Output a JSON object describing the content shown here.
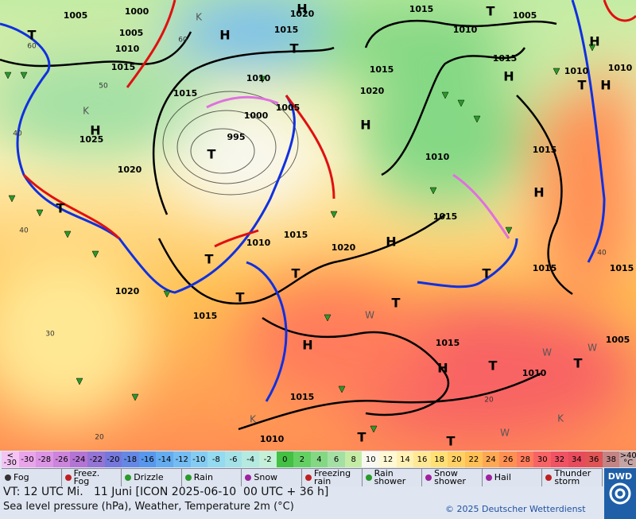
{
  "map": {
    "isobar_labels": [
      "1005",
      "1000",
      "1020",
      "1015",
      "1005",
      "1005",
      "1010",
      "1015",
      "1010",
      "1015",
      "1015",
      "1010",
      "1010",
      "1010",
      "1015",
      "1015",
      "1020",
      "1005",
      "1000",
      "995",
      "1025",
      "1020",
      "1015",
      "1010",
      "1015",
      "1015",
      "1010",
      "1020",
      "1015",
      "1015",
      "1020",
      "1015",
      "1015",
      "1005",
      "1010",
      "1015",
      "1010"
    ],
    "systems": [
      "H",
      "H",
      "H",
      "H",
      "H",
      "H",
      "H",
      "H",
      "H",
      "H",
      "H",
      "T",
      "T",
      "T",
      "T",
      "T",
      "T",
      "T",
      "T",
      "T",
      "T",
      "T",
      "T",
      "T",
      "T",
      "T"
    ],
    "temperature_labels": [
      "60",
      "60",
      "50",
      "40",
      "40",
      "30",
      "20",
      "20",
      "40"
    ],
    "air_mass_labels": [
      "K",
      "K",
      "K",
      "K",
      "W",
      "W",
      "W",
      "W"
    ]
  },
  "legend": {
    "scale": [
      {
        "top": "<",
        "label": "-30",
        "color": "#f4c4f4"
      },
      {
        "label": "-30",
        "color": "#eaa4ea"
      },
      {
        "label": "-28",
        "color": "#dc94e4"
      },
      {
        "label": "-26",
        "color": "#cc84dc"
      },
      {
        "label": "-24",
        "color": "#b474d4"
      },
      {
        "label": "-22",
        "color": "#9474d4"
      },
      {
        "label": "-20",
        "color": "#7478dc"
      },
      {
        "label": "-18",
        "color": "#6488e4"
      },
      {
        "label": "-16",
        "color": "#5898ec"
      },
      {
        "label": "-14",
        "color": "#64acf0"
      },
      {
        "label": "-12",
        "color": "#74bcf2"
      },
      {
        "label": "-10",
        "color": "#84ccf2"
      },
      {
        "label": "-8",
        "color": "#94daf0"
      },
      {
        "label": "-6",
        "color": "#a4e2e8"
      },
      {
        "label": "-4",
        "color": "#b4eae0"
      },
      {
        "label": "-2",
        "color": "#c4f0d8"
      },
      {
        "label": "0",
        "color": "#44c044"
      },
      {
        "label": "2",
        "color": "#64d064"
      },
      {
        "label": "4",
        "color": "#84d884"
      },
      {
        "label": "6",
        "color": "#a4e0a4"
      },
      {
        "label": "8",
        "color": "#c4eca4"
      },
      {
        "label": "10",
        "color": "#f8f8f0"
      },
      {
        "label": "12",
        "color": "#fff8d4"
      },
      {
        "label": "14",
        "color": "#fff0b4"
      },
      {
        "label": "16",
        "color": "#ffe894"
      },
      {
        "label": "18",
        "color": "#ffe074"
      },
      {
        "label": "20",
        "color": "#ffd064"
      },
      {
        "label": "22",
        "color": "#ffc054"
      },
      {
        "label": "24",
        "color": "#ffa854"
      },
      {
        "label": "26",
        "color": "#ff9054"
      },
      {
        "label": "28",
        "color": "#ff7c5c"
      },
      {
        "label": "30",
        "color": "#f86464"
      },
      {
        "label": "32",
        "color": "#f05464"
      },
      {
        "label": "34",
        "color": "#e84c5c"
      },
      {
        "label": "36",
        "color": "#e05454"
      },
      {
        "label": "38",
        "color": "#c48484"
      },
      {
        "top": ">40",
        "label": "°C",
        "color": "#c4a4a4"
      }
    ],
    "weather": [
      "Fog",
      "Freez.\nFog",
      "Drizzle",
      "Rain",
      "Snow",
      "Freezing\nrain",
      "Rain\nshower",
      "Snow\nshower",
      "Hail",
      "Thunder\nstorm"
    ]
  },
  "footer": {
    "valid_time": "VT: 12 UTC Mi.   11 Juni [ICON 2025-06-10  00 UTC + 36 h]",
    "description": "Sea level pressure (hPa), Weather, Temperature 2m (°C)",
    "copyright": "© 2025 Deutscher Wetterdienst",
    "logo": "DWD"
  }
}
